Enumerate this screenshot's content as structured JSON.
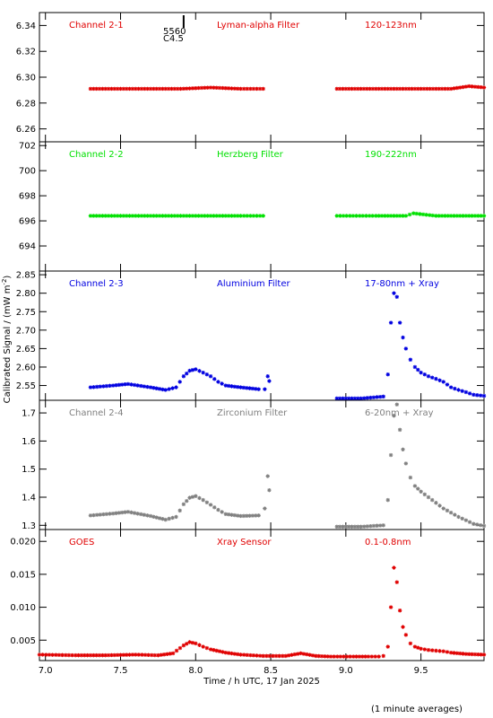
{
  "figure": {
    "ylabel_html": "Calibrated Signal / (mW m",
    "ylabel_sup": "-2",
    "ylabel_tail": ")",
    "xlabel": "Time / h UTC, 17 Jan 2025",
    "footnote": "(1 minute averages)",
    "event_marker": {
      "label_top": "5560",
      "label_bottom": "C4.5",
      "x": 7.92
    }
  },
  "chart_data": [
    {
      "type": "scatter",
      "panel": "channel-2-1",
      "channel": "Channel 2-1",
      "filter": "Lyman-alpha Filter",
      "band": "120-123nm",
      "color": "#e00000",
      "xlim": [
        6.96,
        9.92
      ],
      "ylim": [
        6.25,
        6.35
      ],
      "yticks": [
        6.26,
        6.28,
        6.3,
        6.32,
        6.34
      ],
      "ytick_labels": [
        "6.26",
        "6.28",
        "6.30",
        "6.32",
        "6.34"
      ],
      "series": [
        {
          "x": [
            7.3,
            7.5,
            7.7,
            7.9,
            8.1,
            8.3,
            8.45
          ],
          "y": [
            6.291,
            6.291,
            6.291,
            6.291,
            6.292,
            6.291,
            6.291
          ]
        },
        {
          "x": [
            8.94,
            9.1,
            9.3,
            9.5,
            9.7,
            9.82,
            9.92
          ],
          "y": [
            6.291,
            6.291,
            6.291,
            6.291,
            6.291,
            6.293,
            6.292
          ]
        }
      ]
    },
    {
      "type": "scatter",
      "panel": "channel-2-2",
      "channel": "Channel 2-2",
      "filter": "Herzberg Filter",
      "band": "190-222nm",
      "color": "#00e000",
      "xlim": [
        6.96,
        9.92
      ],
      "ylim": [
        692.0,
        702.3
      ],
      "yticks": [
        694,
        696,
        698,
        700,
        702
      ],
      "ytick_labels": [
        "694",
        "696",
        "698",
        "700",
        "702"
      ],
      "series": [
        {
          "x": [
            7.3,
            7.5,
            7.7,
            7.9,
            8.1,
            8.3,
            8.45
          ],
          "y": [
            696.4,
            696.4,
            696.4,
            696.4,
            696.4,
            696.4,
            696.4
          ]
        },
        {
          "x": [
            8.94,
            9.2,
            9.4,
            9.45,
            9.6,
            9.8,
            9.92
          ],
          "y": [
            696.4,
            696.4,
            696.4,
            696.6,
            696.4,
            696.4,
            696.4
          ]
        }
      ]
    },
    {
      "type": "scatter",
      "panel": "channel-2-3",
      "channel": "Channel 2-3",
      "filter": "Aluminium Filter",
      "band": "17-80nm + Xray",
      "color": "#0000e0",
      "xlim": [
        6.96,
        9.92
      ],
      "ylim": [
        2.51,
        2.86
      ],
      "yticks": [
        2.55,
        2.6,
        2.65,
        2.7,
        2.75,
        2.8,
        2.85
      ],
      "ytick_labels": [
        "2.55",
        "2.60",
        "2.65",
        "2.70",
        "2.75",
        "2.80",
        "2.85"
      ],
      "series": [
        {
          "x": [
            7.3,
            7.45,
            7.55,
            7.7,
            7.8,
            7.87,
            7.92,
            7.96,
            8.0,
            8.05,
            8.1,
            8.15,
            8.2,
            8.3,
            8.42
          ],
          "y": [
            2.545,
            2.55,
            2.554,
            2.545,
            2.538,
            2.545,
            2.575,
            2.59,
            2.594,
            2.585,
            2.575,
            2.56,
            2.55,
            2.545,
            2.54
          ]
        },
        {
          "x": [
            8.46,
            8.48,
            8.49
          ],
          "y": [
            2.54,
            2.575,
            2.562
          ]
        },
        {
          "x": [
            8.94,
            9.1,
            9.25,
            9.28,
            9.3,
            9.32,
            9.34,
            9.36,
            9.38,
            9.4,
            9.43,
            9.46,
            9.5,
            9.55,
            9.6,
            9.65,
            9.7,
            9.75,
            9.8,
            9.85,
            9.92
          ],
          "y": [
            2.515,
            2.515,
            2.52,
            2.58,
            2.72,
            2.8,
            2.79,
            2.72,
            2.68,
            2.65,
            2.62,
            2.6,
            2.585,
            2.575,
            2.568,
            2.56,
            2.545,
            2.538,
            2.532,
            2.525,
            2.522
          ]
        }
      ]
    },
    {
      "type": "scatter",
      "panel": "channel-2-4",
      "channel": "Channel 2-4",
      "filter": "Zirconium Filter",
      "band": "6-20nm + Xray",
      "color": "#808080",
      "xlim": [
        6.96,
        9.92
      ],
      "ylim": [
        1.285,
        1.745
      ],
      "yticks": [
        1.3,
        1.4,
        1.5,
        1.6,
        1.7
      ],
      "ytick_labels": [
        "1.3",
        "1.4",
        "1.5",
        "1.6",
        "1.7"
      ],
      "series": [
        {
          "x": [
            7.3,
            7.45,
            7.55,
            7.7,
            7.8,
            7.87,
            7.92,
            7.96,
            8.0,
            8.05,
            8.1,
            8.15,
            8.2,
            8.3,
            8.42
          ],
          "y": [
            1.335,
            1.342,
            1.348,
            1.333,
            1.32,
            1.33,
            1.375,
            1.398,
            1.404,
            1.39,
            1.373,
            1.355,
            1.34,
            1.333,
            1.335
          ]
        },
        {
          "x": [
            8.46,
            8.48,
            8.49
          ],
          "y": [
            1.36,
            1.475,
            1.425
          ]
        },
        {
          "x": [
            8.94,
            9.1,
            9.25,
            9.28,
            9.3,
            9.32,
            9.34,
            9.36,
            9.38,
            9.4,
            9.43,
            9.46,
            9.5,
            9.55,
            9.6,
            9.65,
            9.7,
            9.75,
            9.8,
            9.85,
            9.92
          ],
          "y": [
            1.295,
            1.295,
            1.3,
            1.39,
            1.55,
            1.69,
            1.73,
            1.64,
            1.57,
            1.52,
            1.47,
            1.44,
            1.42,
            1.4,
            1.38,
            1.36,
            1.345,
            1.33,
            1.318,
            1.305,
            1.298
          ]
        }
      ]
    },
    {
      "type": "scatter",
      "panel": "goes",
      "channel": "GOES",
      "filter": "Xray Sensor",
      "band": "0.1-0.8nm",
      "color": "#e00000",
      "xlim": [
        6.96,
        9.92
      ],
      "ylim": [
        0.0019,
        0.0218
      ],
      "yticks": [
        0.005,
        0.01,
        0.015,
        0.02
      ],
      "ytick_labels": [
        "0.005",
        "0.010",
        "0.015",
        "0.020"
      ],
      "series": [
        {
          "x": [
            6.96,
            7.2,
            7.4,
            7.6,
            7.75,
            7.85,
            7.92,
            7.96,
            8.0,
            8.05,
            8.1,
            8.2,
            8.3,
            8.45,
            8.6,
            8.7,
            8.8,
            8.9,
            9.05,
            9.15,
            9.22,
            9.25,
            9.28,
            9.3,
            9.32,
            9.34,
            9.36,
            9.38,
            9.4,
            9.43,
            9.46,
            9.5,
            9.55,
            9.6,
            9.65,
            9.7,
            9.8,
            9.92
          ],
          "y": [
            0.0028,
            0.0027,
            0.0027,
            0.0028,
            0.0027,
            0.003,
            0.0042,
            0.0047,
            0.0045,
            0.004,
            0.0036,
            0.0031,
            0.0028,
            0.0026,
            0.0026,
            0.003,
            0.0026,
            0.0025,
            0.0025,
            0.0025,
            0.0025,
            0.0026,
            0.004,
            0.01,
            0.016,
            0.0138,
            0.0095,
            0.007,
            0.0058,
            0.0045,
            0.004,
            0.0037,
            0.0035,
            0.0034,
            0.0033,
            0.0031,
            0.0029,
            0.0028
          ]
        }
      ]
    }
  ],
  "xaxis": {
    "ticks": [
      7.0,
      7.5,
      8.0,
      8.5,
      9.0,
      9.5
    ],
    "labels": [
      "7.0",
      "7.5",
      "8.0",
      "8.5",
      "9.0",
      "9.5"
    ]
  }
}
